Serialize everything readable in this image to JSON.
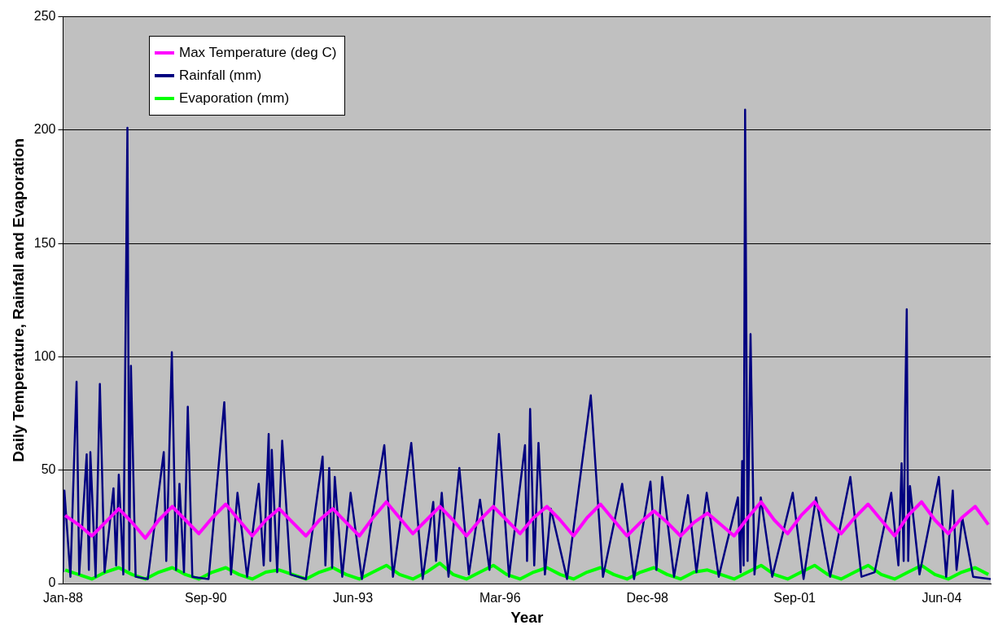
{
  "chart_data": {
    "type": "line",
    "xlabel": "Year",
    "ylabel": "Daily Temperature, Rainfall and Evaporation",
    "xlim": [
      "1988-01",
      "2005-05"
    ],
    "ylim": [
      0,
      250
    ],
    "yticks": [
      0,
      50,
      100,
      150,
      200,
      250
    ],
    "xticks": [
      {
        "value": "1988-01",
        "label": "Jan-88"
      },
      {
        "value": "1990-09",
        "label": "Sep-90"
      },
      {
        "value": "1993-06",
        "label": "Jun-93"
      },
      {
        "value": "1996-03",
        "label": "Mar-96"
      },
      {
        "value": "1998-12",
        "label": "Dec-98"
      },
      {
        "value": "2001-09",
        "label": "Sep-01"
      },
      {
        "value": "2004-06",
        "label": "Jun-04"
      }
    ],
    "grid": "y",
    "legend": "top left",
    "marker": "none",
    "line_style": "solid",
    "series": [
      {
        "name": "Max Temperature (deg C)",
        "color": "#ff00ff",
        "x": [
          "1988-01-15",
          "1988-04-15",
          "1988-07-15",
          "1988-10-15",
          "1989-01-15",
          "1989-04-15",
          "1989-07-15",
          "1989-10-15",
          "1990-01-15",
          "1990-04-15",
          "1990-07-15",
          "1990-10-15",
          "1991-01-15",
          "1991-04-15",
          "1991-07-15",
          "1991-10-15",
          "1992-01-15",
          "1992-04-15",
          "1992-07-15",
          "1992-10-15",
          "1993-01-15",
          "1993-04-15",
          "1993-07-15",
          "1993-10-15",
          "1994-01-15",
          "1994-04-15",
          "1994-07-15",
          "1994-10-15",
          "1995-01-15",
          "1995-04-15",
          "1995-07-15",
          "1995-10-15",
          "1996-01-15",
          "1996-04-15",
          "1996-07-15",
          "1996-10-15",
          "1997-01-15",
          "1997-04-15",
          "1997-07-15",
          "1997-10-15",
          "1998-01-15",
          "1998-04-15",
          "1998-07-15",
          "1998-10-15",
          "1999-01-15",
          "1999-04-15",
          "1999-07-15",
          "1999-10-15",
          "2000-01-15",
          "2000-04-15",
          "2000-07-15",
          "2000-10-15",
          "2001-01-15",
          "2001-04-15",
          "2001-07-15",
          "2001-10-15",
          "2002-01-15",
          "2002-04-15",
          "2002-07-15",
          "2002-10-15",
          "2003-01-15",
          "2003-04-15",
          "2003-07-15",
          "2003-10-15",
          "2004-01-15",
          "2004-04-15",
          "2004-07-15",
          "2004-10-15",
          "2005-01-15",
          "2005-04-15"
        ],
        "values": [
          30,
          26,
          21,
          27,
          33,
          27,
          20,
          28,
          34,
          28,
          22,
          29,
          35,
          28,
          21,
          28,
          33,
          27,
          21,
          28,
          33,
          27,
          21,
          29,
          36,
          29,
          22,
          28,
          34,
          28,
          21,
          28,
          34,
          28,
          22,
          29,
          34,
          28,
          21,
          29,
          35,
          28,
          21,
          27,
          32,
          27,
          21,
          27,
          31,
          26,
          21,
          29,
          36,
          28,
          22,
          30,
          36,
          28,
          22,
          29,
          35,
          28,
          21,
          30,
          36,
          28,
          22,
          29,
          34,
          26
        ]
      },
      {
        "name": "Rainfall (mm)",
        "color": "#000080",
        "x": [
          "1988-01-01",
          "1988-01-10",
          "1988-02-20",
          "1988-04-02",
          "1988-04-20",
          "1988-06-10",
          "1988-06-25",
          "1988-07-05",
          "1988-08-10",
          "1988-09-08",
          "1988-10-10",
          "1988-12-10",
          "1988-12-28",
          "1989-01-15",
          "1989-02-15",
          "1989-03-15",
          "1989-03-28",
          "1989-04-08",
          "1989-05-10",
          "1989-08-01",
          "1989-11-18",
          "1989-12-05",
          "1989-12-22",
          "1990-01-12",
          "1990-02-10",
          "1990-03-05",
          "1990-04-05",
          "1990-05-01",
          "1990-06-01",
          "1990-09-20",
          "1991-01-05",
          "1991-02-20",
          "1991-04-05",
          "1991-06-10",
          "1991-08-28",
          "1991-10-01",
          "1991-11-04",
          "1991-11-15",
          "1991-11-25",
          "1992-01-01",
          "1992-02-04",
          "1992-04-01",
          "1992-07-15",
          "1992-11-06",
          "1992-11-25",
          "1992-12-21",
          "1993-01-10",
          "1993-01-28",
          "1993-03-20",
          "1993-05-16",
          "1993-08-01",
          "1994-01-01",
          "1994-03-01",
          "1994-07-04",
          "1994-09-20",
          "1994-12-01",
          "1994-12-20",
          "1995-01-28",
          "1995-03-15",
          "1995-05-28",
          "1995-08-01",
          "1995-10-16",
          "1995-12-20",
          "1996-02-22",
          "1996-05-01",
          "1996-08-18",
          "1996-09-01",
          "1996-09-22",
          "1996-10-20",
          "1996-11-18",
          "1997-01-01",
          "1997-02-10",
          "1997-06-01",
          "1997-11-10",
          "1998-02-01",
          "1998-06-12",
          "1998-09-01",
          "1998-12-22",
          "1999-02-01",
          "1999-03-12",
          "1999-06-01",
          "1999-09-04",
          "1999-11-01",
          "2000-01-10",
          "2000-04-01",
          "2000-08-10",
          "2000-08-28",
          "2000-09-08",
          "2000-09-18",
          "2000-09-28",
          "2000-10-15",
          "2000-11-04",
          "2000-12-01",
          "2001-01-13",
          "2001-04-01",
          "2001-08-19",
          "2001-11-01",
          "2002-01-25",
          "2002-05-01",
          "2002-09-16",
          "2002-12-01",
          "2003-03-01",
          "2003-06-22",
          "2003-08-10",
          "2003-09-01",
          "2003-09-15",
          "2003-09-25",
          "2003-10-06",
          "2003-10-16",
          "2003-10-28",
          "2004-01-01",
          "2004-05-12",
          "2004-07-01",
          "2004-08-15",
          "2004-09-10",
          "2004-10-19",
          "2005-01-01",
          "2005-05-01"
        ],
        "values": [
          5,
          41,
          3,
          89,
          4,
          57,
          6,
          58,
          3,
          88,
          5,
          42,
          8,
          48,
          4,
          201,
          6,
          96,
          3,
          2,
          58,
          10,
          49,
          102,
          6,
          44,
          5,
          78,
          3,
          2,
          80,
          4,
          40,
          3,
          44,
          8,
          66,
          10,
          59,
          5,
          63,
          4,
          2,
          56,
          8,
          51,
          7,
          47,
          3,
          40,
          2,
          61,
          3,
          62,
          2,
          36,
          10,
          40,
          3,
          51,
          4,
          37,
          6,
          66,
          3,
          61,
          10,
          77,
          8,
          62,
          4,
          33,
          2,
          83,
          3,
          44,
          2,
          45,
          6,
          47,
          3,
          39,
          5,
          40,
          3,
          38,
          5,
          54,
          8,
          209,
          10,
          110,
          4,
          38,
          3,
          40,
          2,
          38,
          3,
          47,
          3,
          5,
          40,
          8,
          53,
          10,
          77,
          121,
          10,
          43,
          4,
          47,
          3,
          41,
          6,
          29,
          3,
          2
        ]
      },
      {
        "name": "Evaporation (mm)",
        "color": "#00ff00",
        "x": [
          "1988-01-15",
          "1988-04-15",
          "1988-07-15",
          "1988-10-15",
          "1989-01-15",
          "1989-04-15",
          "1989-07-15",
          "1989-10-15",
          "1990-01-15",
          "1990-04-15",
          "1990-07-15",
          "1990-10-15",
          "1991-01-15",
          "1991-04-15",
          "1991-07-15",
          "1991-10-15",
          "1992-01-15",
          "1992-04-15",
          "1992-07-15",
          "1992-10-15",
          "1993-01-15",
          "1993-04-15",
          "1993-07-15",
          "1993-10-15",
          "1994-01-15",
          "1994-04-15",
          "1994-07-15",
          "1994-10-15",
          "1995-01-15",
          "1995-04-15",
          "1995-07-15",
          "1995-10-15",
          "1996-01-15",
          "1996-04-15",
          "1996-07-15",
          "1996-10-15",
          "1997-01-15",
          "1997-04-15",
          "1997-07-15",
          "1997-10-15",
          "1998-01-15",
          "1998-04-15",
          "1998-07-15",
          "1998-10-15",
          "1999-01-15",
          "1999-04-15",
          "1999-07-15",
          "1999-10-15",
          "2000-01-15",
          "2000-04-15",
          "2000-07-15",
          "2000-10-15",
          "2001-01-15",
          "2001-04-15",
          "2001-07-15",
          "2001-10-15",
          "2002-01-15",
          "2002-04-15",
          "2002-07-15",
          "2002-10-15",
          "2003-01-15",
          "2003-04-15",
          "2003-07-15",
          "2003-10-15",
          "2004-01-15",
          "2004-04-15",
          "2004-07-15",
          "2004-10-15",
          "2005-01-15",
          "2005-04-15"
        ],
        "values": [
          6,
          4,
          2,
          5,
          7,
          4,
          2,
          5,
          7,
          4,
          2,
          5,
          7,
          4,
          2,
          5,
          6,
          4,
          2,
          5,
          7,
          4,
          2,
          5,
          8,
          4,
          2,
          5,
          9,
          4,
          2,
          5,
          8,
          4,
          2,
          5,
          7,
          4,
          2,
          5,
          7,
          4,
          2,
          5,
          7,
          4,
          2,
          5,
          6,
          4,
          2,
          5,
          8,
          4,
          2,
          5,
          8,
          4,
          2,
          5,
          8,
          4,
          2,
          5,
          8,
          4,
          2,
          5,
          7,
          4
        ]
      }
    ]
  }
}
